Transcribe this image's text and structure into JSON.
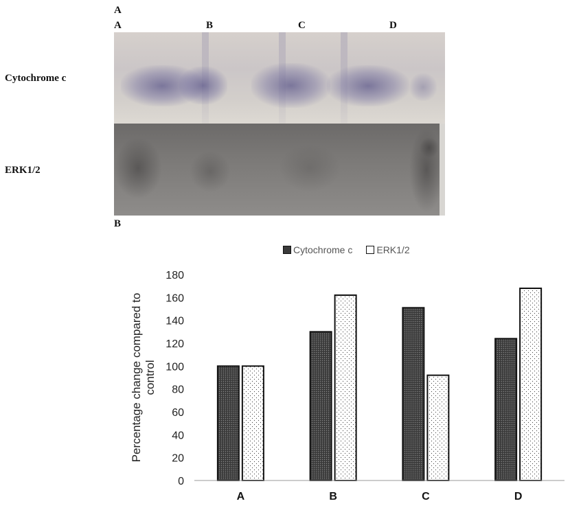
{
  "panel_a_label": "A",
  "panel_b_label": "B",
  "lanes": [
    "A",
    "B",
    "C",
    "D"
  ],
  "blot_rows": [
    "Cytochrome c",
    "ERK1/2"
  ],
  "chart_data": {
    "type": "bar",
    "categories": [
      "A",
      "B",
      "C",
      "D"
    ],
    "series": [
      {
        "name": "Cytochrome c",
        "values": [
          100,
          130,
          151,
          124
        ],
        "pattern": "dense-dots",
        "color": "#3a3a3a"
      },
      {
        "name": "ERK1/2",
        "values": [
          100,
          162,
          92,
          168
        ],
        "pattern": "sparse-dots",
        "color": "#ffffff"
      }
    ],
    "title": "",
    "xlabel": "",
    "ylabel_lines": [
      "Percentage change compared to",
      "control"
    ],
    "ylim": [
      0,
      180
    ],
    "yticks": [
      0,
      20,
      40,
      60,
      80,
      100,
      120,
      140,
      160,
      180
    ],
    "grid": false,
    "legend": "top-center"
  }
}
